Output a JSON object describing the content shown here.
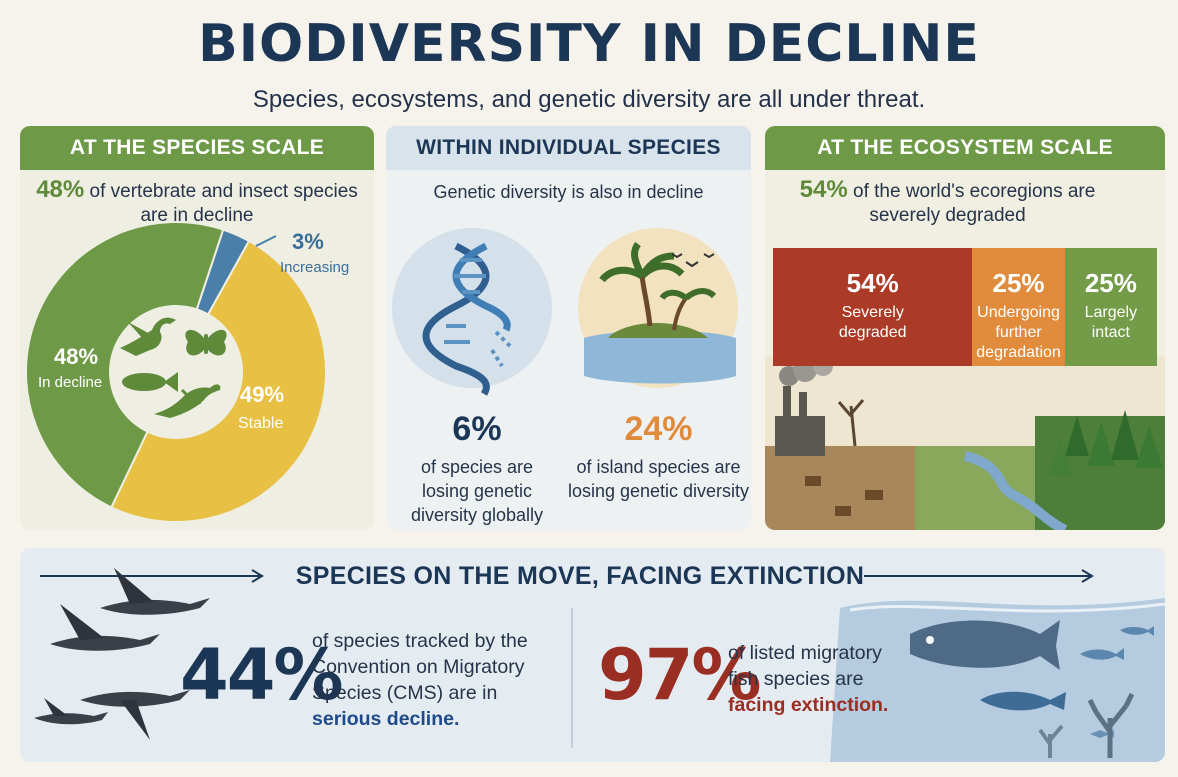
{
  "header": {
    "title": "BIODIVERSITY IN DECLINE",
    "subtitle": "Species, ecosystems, and genetic diversity are all under threat."
  },
  "species_scale": {
    "heading": "AT THE SPECIES SCALE",
    "stat_value": "48%",
    "stat_text_1": "of vertebrate and insect species",
    "stat_text_2": "are in decline",
    "labels": {
      "decline_pct": "48%",
      "decline_label": "In decline",
      "stable_pct": "49%",
      "stable_label": "Stable",
      "increasing_pct": "3%",
      "increasing_label": "Increasing"
    },
    "icons": [
      "bird-icon",
      "butterfly-icon",
      "fish-icon",
      "lizard-icon"
    ]
  },
  "chart_data": [
    {
      "type": "pie",
      "title": "AT THE SPECIES SCALE",
      "categories": [
        "In decline",
        "Stable",
        "Increasing"
      ],
      "values": [
        48,
        49,
        3
      ],
      "colors": [
        "#6e9a48",
        "#e8c043",
        "#4a7faa"
      ]
    },
    {
      "type": "bar",
      "title": "AT THE ECOSYSTEM SCALE",
      "categories": [
        "Severely degraded",
        "Undergoing further degradation",
        "Largely intact"
      ],
      "values": [
        54,
        25,
        25
      ],
      "colors": [
        "#ab3a26",
        "#e08c3c",
        "#739b48"
      ]
    }
  ],
  "genetic": {
    "heading": "WITHIN INDIVIDUAL SPECIES",
    "intro": "Genetic diversity is also in decline",
    "global_value": "6%",
    "global_text_1": "of species are",
    "global_text_2": "losing genetic",
    "global_text_3": "diversity globally",
    "island_value": "24%",
    "island_text_1": "of island species are",
    "island_text_2": "losing genetic diversity"
  },
  "ecosystem": {
    "heading": "AT THE ECOSYSTEM SCALE",
    "stat_value": "54%",
    "stat_text_1": "of the world's ecoregions are",
    "stat_text_2": "severely degraded",
    "bars": [
      {
        "pct": "54%",
        "label_1": "Severely",
        "label_2": "degraded",
        "label_3": ""
      },
      {
        "pct": "25%",
        "label_1": "Undergoing",
        "label_2": "further",
        "label_3": "degradation"
      },
      {
        "pct": "25%",
        "label_1": "Largely",
        "label_2": "intact",
        "label_3": ""
      }
    ]
  },
  "migration": {
    "heading": "SPECIES ON THE MOVE, FACING EXTINCTION",
    "cms_value": "44%",
    "cms_text_1": "of species tracked by the",
    "cms_text_2": "Convention on Migratory",
    "cms_text_3": "Species (CMS) are in",
    "cms_highlight": "serious decline.",
    "fish_value": "97%",
    "fish_text_1": "of listed migratory",
    "fish_text_2": "fish species are",
    "fish_highlight": "facing extinction."
  },
  "colors": {
    "navy": "#1c3656",
    "green": "#6e9a48",
    "yellow": "#e8c043",
    "blue": "#4a7faa",
    "red": "#ab3a26",
    "orange": "#e08c3c",
    "accent_red": "#9a2e22",
    "accent_orange": "#e08a3c"
  }
}
